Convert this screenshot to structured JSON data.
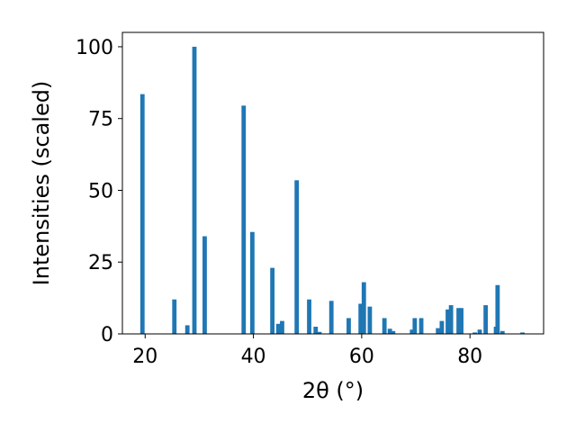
{
  "chart_data": {
    "type": "bar",
    "xlabel": "2θ (°)",
    "ylabel": "Intensities (scaled)",
    "xlim": [
      15.8,
      93.6
    ],
    "ylim": [
      0,
      105
    ],
    "xticks": [
      20,
      40,
      60,
      80
    ],
    "yticks": [
      0,
      25,
      50,
      75,
      100
    ],
    "xtick_labels": [
      "20",
      "40",
      "60",
      "80"
    ],
    "ytick_labels": [
      "0",
      "25",
      "50",
      "75",
      "100"
    ],
    "bar_width": 0.8,
    "color": "#1f77b4",
    "grid": false,
    "x": [
      19.5,
      25.4,
      27.8,
      29.1,
      31.0,
      38.2,
      39.8,
      43.5,
      44.6,
      45.3,
      48.0,
      50.3,
      51.5,
      52.2,
      54.4,
      57.6,
      59.8,
      60.4,
      61.5,
      64.2,
      65.2,
      65.8,
      69.3,
      69.8,
      71.0,
      74.1,
      74.8,
      75.9,
      76.5,
      77.9,
      78.4,
      80.9,
      81.8,
      82.9,
      84.8,
      85.1,
      86.0,
      89.7
    ],
    "values": [
      83.5,
      12,
      3,
      100,
      34,
      79.5,
      35.5,
      23,
      3.5,
      4.5,
      53.5,
      12,
      2.5,
      0.7,
      11.5,
      5.5,
      10.5,
      18,
      9.5,
      5.5,
      1.8,
      1,
      1.5,
      5.5,
      5.5,
      2,
      4.5,
      8.5,
      10,
      9,
      9,
      0.5,
      1.5,
      10,
      2.5,
      17,
      1,
      0.5
    ]
  }
}
